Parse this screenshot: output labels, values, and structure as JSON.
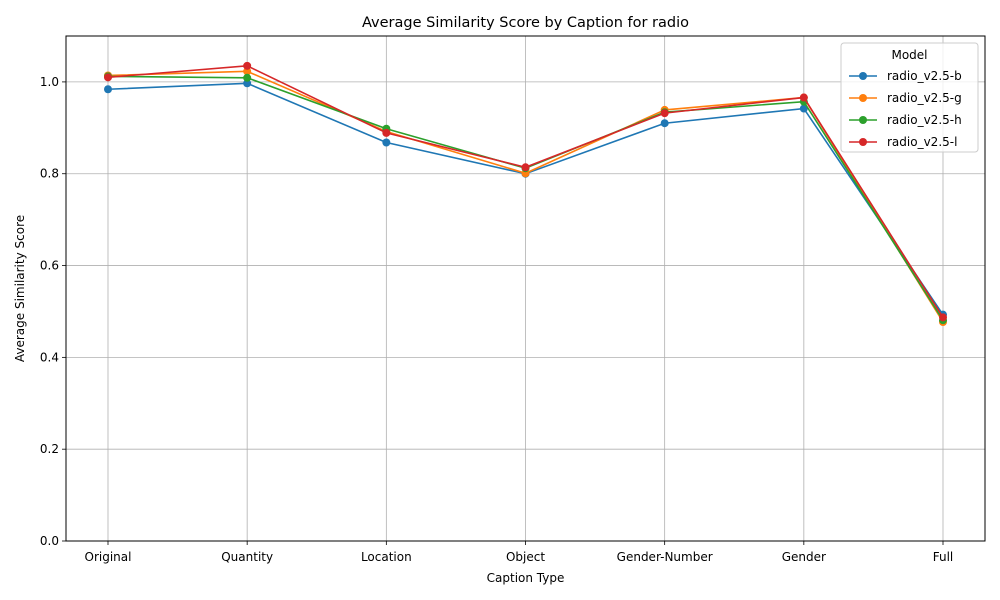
{
  "chart_data": {
    "type": "line",
    "title": "Average Similarity Score by Caption for radio",
    "xlabel": "Caption Type",
    "ylabel": "Average Similarity Score",
    "categories": [
      "Original",
      "Quantity",
      "Location",
      "Object",
      "Gender-Number",
      "Gender",
      "Full"
    ],
    "ylim": [
      0,
      1.1
    ],
    "yticks": [
      "0.0",
      "0.2",
      "0.4",
      "0.6",
      "0.8",
      "1.0"
    ],
    "grid": true,
    "legend_title": "Model",
    "legend_position": "top-right",
    "series": [
      {
        "name": "radio_v2.5-b",
        "color": "#1f77b4",
        "values": [
          0.984,
          0.997,
          0.868,
          0.8,
          0.91,
          0.942,
          0.493
        ]
      },
      {
        "name": "radio_v2.5-g",
        "color": "#ff7f0e",
        "values": [
          1.014,
          1.023,
          0.892,
          0.801,
          0.939,
          0.966,
          0.477
        ]
      },
      {
        "name": "radio_v2.5-h",
        "color": "#2ca02c",
        "values": [
          1.012,
          1.009,
          0.898,
          0.812,
          0.934,
          0.957,
          0.481
        ]
      },
      {
        "name": "radio_v2.5-l",
        "color": "#d62728",
        "values": [
          1.01,
          1.035,
          0.889,
          0.814,
          0.932,
          0.966,
          0.487
        ]
      }
    ]
  }
}
